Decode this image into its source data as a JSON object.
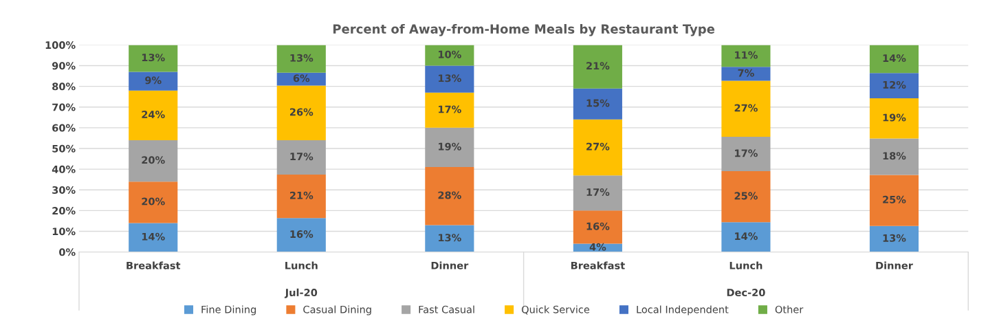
{
  "chart_data": {
    "type": "bar",
    "title": "Percent of Away-from-Home Meals by Restaurant Type",
    "categories": [
      "Breakfast",
      "Lunch",
      "Dinner",
      "Breakfast",
      "Lunch",
      "Dinner"
    ],
    "annotations": [
      "Jul-20",
      "Dec-20"
    ],
    "stacked": true,
    "series": [
      {
        "name": "Fine Dining",
        "color": "#5b9bd5",
        "values": [
          14,
          16.4,
          13,
          4,
          14.4,
          12.6
        ],
        "value_labels": [
          "14%",
          "16%",
          "13%",
          "4%",
          "14%",
          "13%"
        ]
      },
      {
        "name": "Casual Dining",
        "color": "#ed7d31",
        "values": [
          20,
          21,
          28,
          16,
          24.6,
          24.6
        ],
        "value_labels": [
          "20%",
          "21%",
          "28%",
          "16%",
          "25%",
          "25%"
        ]
      },
      {
        "name": "Fast Casual",
        "color": "#a5a5a5",
        "values": [
          20,
          16.6,
          19,
          17,
          16.6,
          17.6
        ],
        "value_labels": [
          "20%",
          "17%",
          "19%",
          "17%",
          "17%",
          "18%"
        ]
      },
      {
        "name": "Quick Service",
        "color": "#ffc000",
        "values": [
          24,
          26.4,
          17,
          27,
          27.1,
          19.4
        ],
        "value_labels": [
          "24%",
          "26%",
          "17%",
          "27%",
          "27%",
          "19%"
        ]
      },
      {
        "name": "Local Independent",
        "color": "#4472c4",
        "values": [
          9,
          6.2,
          13,
          15,
          6.7,
          12.2
        ],
        "value_labels": [
          "9%",
          "6%",
          "13%",
          "15%",
          "7%",
          "12%"
        ]
      },
      {
        "name": "Other",
        "color": "#70ad47",
        "values": [
          13,
          13.4,
          10,
          21,
          10.6,
          13.6
        ],
        "value_labels": [
          "13%",
          "13%",
          "10%",
          "21%",
          "11%",
          "14%"
        ]
      }
    ],
    "ylim": [
      0,
      100
    ],
    "yticks": [
      {
        "value": 0,
        "label": "0%"
      },
      {
        "value": 10,
        "label": "10%"
      },
      {
        "value": 20,
        "label": "20%"
      },
      {
        "value": 30,
        "label": "30%"
      },
      {
        "value": 40,
        "label": "40%"
      },
      {
        "value": 50,
        "label": "50%"
      },
      {
        "value": 60,
        "label": "60%"
      },
      {
        "value": 70,
        "label": "70%"
      },
      {
        "value": 80,
        "label": "80%"
      },
      {
        "value": 90,
        "label": "90%"
      },
      {
        "value": 100,
        "label": "100%"
      }
    ],
    "grid": "y",
    "legend": "bottom"
  }
}
